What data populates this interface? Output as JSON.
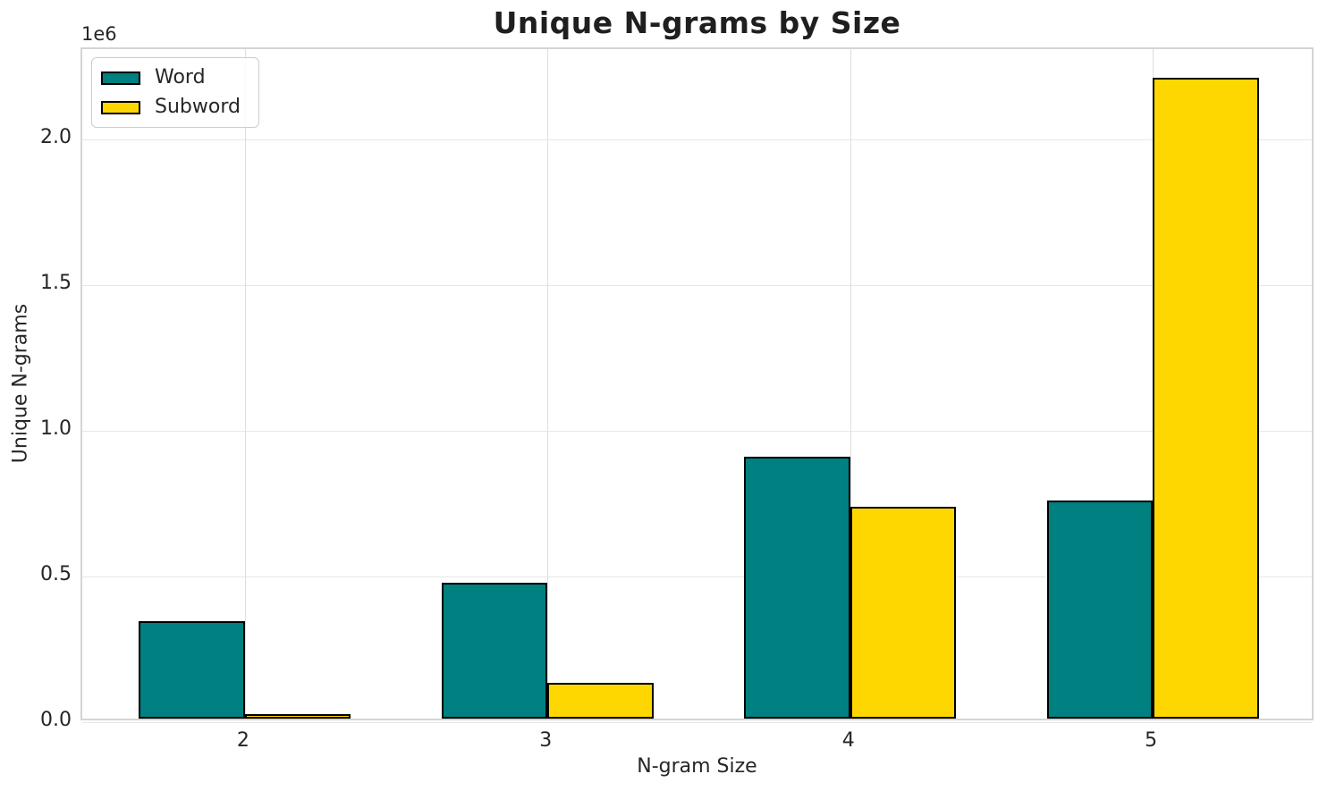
{
  "chart_data": {
    "type": "bar",
    "title": "Unique N-grams by Size",
    "xlabel": "N-gram Size",
    "ylabel": "Unique N-grams",
    "y_offset_label": "1e6",
    "categories": [
      "2",
      "3",
      "4",
      "5"
    ],
    "x": [
      2,
      3,
      4,
      5
    ],
    "series": [
      {
        "name": "Word",
        "color": "#008080",
        "values": [
          335000,
          465000,
          900000,
          750000
        ]
      },
      {
        "name": "Subword",
        "color": "#FFD700",
        "values": [
          15000,
          123000,
          727000,
          2200000
        ]
      }
    ],
    "bar_width": 0.35,
    "bar_edge_color": "#000000",
    "xlim": [
      1.4625,
      5.5375
    ],
    "ylim": [
      0,
      2310000
    ],
    "yticks": {
      "values": [
        0,
        500000,
        1000000,
        1500000,
        2000000
      ],
      "labels": [
        "0.0",
        "0.5",
        "1.0",
        "1.5",
        "2.0"
      ]
    },
    "grid": "both",
    "legend_position": "upper left",
    "colors": {
      "grid_h": "#e7e7e7",
      "grid_v": "#dedede",
      "plot_border": "#d4d4d4",
      "text": "#262626",
      "background": "#ffffff"
    }
  }
}
